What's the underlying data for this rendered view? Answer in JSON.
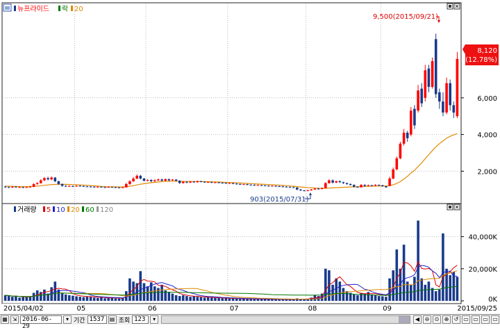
{
  "price_panel": {
    "legend": {
      "name": "뉴프라이드",
      "up_label": "락",
      "ma_value": "20"
    },
    "high_annotation": "9,500(2015/09/21)",
    "low_annotation": "903(2015/07/31)",
    "current_price": "8,120",
    "current_change": "(12.78%)"
  },
  "volume_panel": {
    "legend": {
      "name": "거래량",
      "ma": [
        "5",
        "10",
        "20",
        "60",
        "120"
      ]
    }
  },
  "x_axis": {
    "start_date": "2015/04/02",
    "end_date": "2015/09/25",
    "month_labels": [
      "05",
      "06",
      "07",
      "08",
      "09"
    ]
  },
  "toolbar": {
    "date": "2016-06-29",
    "period_label": "기간",
    "period_value": "1537",
    "query_label": "조회",
    "query_value": "123"
  },
  "colors": {
    "up": "#ff0000",
    "down": "#1a3a8a",
    "ma20": "#e08a00",
    "ma5": "#e00000",
    "ma10": "#2222cc",
    "ma20v": "#e08a00",
    "ma60": "#007700",
    "ma120": "#999999"
  },
  "chart_data": [
    {
      "type": "candlestick",
      "y_ticks": [
        "2,000",
        "4,000",
        "6,000"
      ],
      "ylim": [
        500,
        10500
      ],
      "candles": [
        [
          1160,
          1130,
          1200,
          1090
        ],
        [
          1130,
          1110,
          1170,
          1080
        ],
        [
          1110,
          1150,
          1190,
          1090
        ],
        [
          1150,
          1120,
          1180,
          1100
        ],
        [
          1120,
          1130,
          1160,
          1090
        ],
        [
          1130,
          1110,
          1160,
          1080
        ],
        [
          1110,
          1130,
          1150,
          1090
        ],
        [
          1130,
          1150,
          1190,
          1110
        ],
        [
          1150,
          1300,
          1340,
          1130
        ],
        [
          1300,
          1350,
          1400,
          1260
        ],
        [
          1350,
          1500,
          1560,
          1320
        ],
        [
          1500,
          1620,
          1680,
          1460
        ],
        [
          1620,
          1550,
          1700,
          1500
        ],
        [
          1550,
          1650,
          1720,
          1510
        ],
        [
          1650,
          1450,
          1680,
          1400
        ],
        [
          1450,
          1300,
          1480,
          1260
        ],
        [
          1300,
          1200,
          1330,
          1150
        ],
        [
          1200,
          1180,
          1240,
          1140
        ],
        [
          1180,
          1190,
          1230,
          1150
        ],
        [
          1190,
          1170,
          1220,
          1140
        ],
        [
          1170,
          1200,
          1230,
          1150
        ],
        [
          1200,
          1190,
          1240,
          1160
        ],
        [
          1190,
          1170,
          1210,
          1140
        ],
        [
          1170,
          1160,
          1200,
          1130
        ],
        [
          1160,
          1150,
          1190,
          1120
        ],
        [
          1150,
          1140,
          1180,
          1110
        ],
        [
          1140,
          1150,
          1180,
          1110
        ],
        [
          1150,
          1130,
          1170,
          1100
        ],
        [
          1130,
          1120,
          1160,
          1090
        ],
        [
          1120,
          1140,
          1170,
          1100
        ],
        [
          1140,
          1130,
          1160,
          1100
        ],
        [
          1130,
          1110,
          1150,
          1080
        ],
        [
          1110,
          1100,
          1140,
          1070
        ],
        [
          1100,
          1120,
          1150,
          1080
        ],
        [
          1120,
          1300,
          1360,
          1100
        ],
        [
          1300,
          1450,
          1500,
          1260
        ],
        [
          1450,
          1600,
          1680,
          1420
        ],
        [
          1600,
          1750,
          1820,
          1560
        ],
        [
          1750,
          1600,
          1800,
          1550
        ],
        [
          1600,
          1480,
          1630,
          1440
        ],
        [
          1480,
          1520,
          1570,
          1440
        ],
        [
          1520,
          1450,
          1560,
          1400
        ],
        [
          1450,
          1500,
          1550,
          1420
        ],
        [
          1500,
          1550,
          1600,
          1460
        ],
        [
          1550,
          1480,
          1590,
          1450
        ],
        [
          1480,
          1560,
          1610,
          1450
        ],
        [
          1560,
          1500,
          1600,
          1460
        ],
        [
          1500,
          1540,
          1580,
          1470
        ],
        [
          1540,
          1480,
          1570,
          1440
        ],
        [
          1480,
          1350,
          1500,
          1320
        ],
        [
          1350,
          1420,
          1460,
          1320
        ],
        [
          1420,
          1380,
          1450,
          1340
        ],
        [
          1380,
          1430,
          1470,
          1350
        ],
        [
          1430,
          1400,
          1460,
          1360
        ],
        [
          1400,
          1450,
          1490,
          1370
        ],
        [
          1450,
          1420,
          1480,
          1390
        ],
        [
          1420,
          1400,
          1450,
          1370
        ],
        [
          1400,
          1410,
          1440,
          1370
        ],
        [
          1410,
          1380,
          1430,
          1350
        ],
        [
          1380,
          1390,
          1420,
          1350
        ],
        [
          1390,
          1370,
          1410,
          1340
        ],
        [
          1370,
          1360,
          1400,
          1330
        ],
        [
          1360,
          1340,
          1390,
          1310
        ],
        [
          1340,
          1350,
          1380,
          1310
        ],
        [
          1350,
          1320,
          1370,
          1290
        ],
        [
          1320,
          1300,
          1350,
          1270
        ],
        [
          1300,
          1280,
          1330,
          1250
        ],
        [
          1280,
          1290,
          1320,
          1250
        ],
        [
          1290,
          1260,
          1310,
          1230
        ],
        [
          1260,
          1250,
          1290,
          1220
        ],
        [
          1250,
          1230,
          1280,
          1200
        ],
        [
          1230,
          1240,
          1270,
          1200
        ],
        [
          1240,
          1220,
          1260,
          1190
        ],
        [
          1220,
          1210,
          1250,
          1180
        ],
        [
          1210,
          1190,
          1240,
          1160
        ],
        [
          1190,
          1200,
          1230,
          1160
        ],
        [
          1200,
          1180,
          1220,
          1150
        ],
        [
          1180,
          1170,
          1210,
          1140
        ],
        [
          1170,
          1150,
          1200,
          1120
        ],
        [
          1150,
          1140,
          1180,
          1110
        ],
        [
          1140,
          1130,
          1170,
          1100
        ],
        [
          1130,
          1110,
          1160,
          1080
        ],
        [
          1110,
          1000,
          1120,
          960
        ],
        [
          1000,
          950,
          1020,
          920
        ],
        [
          950,
          930,
          980,
          903
        ],
        [
          930,
          960,
          990,
          910
        ],
        [
          960,
          1000,
          1030,
          940
        ],
        [
          1000,
          1050,
          1080,
          980
        ],
        [
          1050,
          1030,
          1090,
          1000
        ],
        [
          1030,
          1080,
          1110,
          1010
        ],
        [
          1080,
          1350,
          1400,
          1060
        ],
        [
          1350,
          1500,
          1560,
          1320
        ],
        [
          1500,
          1380,
          1550,
          1330
        ],
        [
          1380,
          1450,
          1480,
          1350
        ],
        [
          1450,
          1400,
          1500,
          1360
        ],
        [
          1400,
          1350,
          1430,
          1300
        ],
        [
          1350,
          1300,
          1380,
          1260
        ],
        [
          1300,
          1250,
          1330,
          1220
        ],
        [
          1250,
          1150,
          1280,
          1120
        ],
        [
          1150,
          1120,
          1180,
          1090
        ],
        [
          1120,
          1250,
          1300,
          1100
        ],
        [
          1250,
          1200,
          1290,
          1150
        ],
        [
          1200,
          1230,
          1270,
          1170
        ],
        [
          1230,
          1210,
          1260,
          1180
        ],
        [
          1210,
          1250,
          1290,
          1190
        ],
        [
          1250,
          1230,
          1280,
          1200
        ],
        [
          1230,
          1180,
          1260,
          1150
        ],
        [
          1180,
          1120,
          1200,
          1100
        ],
        [
          1200,
          1600,
          1700,
          1180
        ],
        [
          1600,
          2100,
          2200,
          1560
        ],
        [
          2100,
          2700,
          2800,
          2050
        ],
        [
          2700,
          3500,
          3600,
          2650
        ],
        [
          3500,
          4100,
          4300,
          3400
        ],
        [
          4100,
          3800,
          4200,
          3600
        ],
        [
          4000,
          5300,
          5500,
          3900
        ],
        [
          5400,
          4500,
          5600,
          4300
        ],
        [
          5300,
          6400,
          6700,
          5200
        ],
        [
          6500,
          5700,
          6800,
          5500
        ],
        [
          6000,
          7500,
          7800,
          5800
        ],
        [
          7600,
          6600,
          7800,
          6300
        ],
        [
          6600,
          8000,
          8200,
          6500
        ],
        [
          9200,
          6200,
          9500,
          6000
        ],
        [
          6300,
          5800,
          6500,
          5400
        ],
        [
          5800,
          5200,
          6300,
          5000
        ],
        [
          5200,
          6800,
          7100,
          5100
        ],
        [
          6800,
          5600,
          7000,
          5300
        ],
        [
          5600,
          5200,
          5800,
          4900
        ],
        [
          5000,
          8120,
          8500,
          4900
        ]
      ],
      "ma20": [
        1180,
        1180,
        1170,
        1165,
        1160,
        1160,
        1160,
        1165,
        1175,
        1190,
        1210,
        1230,
        1250,
        1270,
        1280,
        1285,
        1285,
        1280,
        1275,
        1270,
        1260,
        1250,
        1240,
        1230,
        1215,
        1200,
        1185,
        1170,
        1160,
        1150,
        1150,
        1145,
        1140,
        1145,
        1160,
        1180,
        1210,
        1250,
        1290,
        1320,
        1350,
        1370,
        1390,
        1410,
        1430,
        1440,
        1450,
        1455,
        1455,
        1450,
        1445,
        1440,
        1440,
        1440,
        1440,
        1435,
        1430,
        1425,
        1420,
        1415,
        1410,
        1400,
        1390,
        1385,
        1375,
        1365,
        1355,
        1345,
        1335,
        1325,
        1310,
        1300,
        1290,
        1280,
        1270,
        1260,
        1250,
        1240,
        1225,
        1210,
        1195,
        1180,
        1160,
        1140,
        1120,
        1100,
        1090,
        1080,
        1070,
        1065,
        1070,
        1080,
        1090,
        1100,
        1110,
        1120,
        1130,
        1140,
        1145,
        1150,
        1160,
        1170,
        1175,
        1180,
        1185,
        1190,
        1195,
        1195,
        1215,
        1260,
        1330,
        1430,
        1570,
        1720,
        1900,
        2050,
        2250,
        2450,
        2680,
        2900,
        3120,
        3330,
        3500,
        3650,
        3800,
        3900,
        3980,
        4050
      ],
      "annotations": [
        "9,500(2015/09/21)",
        "903(2015/07/31)"
      ]
    },
    {
      "type": "bar",
      "y_ticks": [
        "40,000K",
        "20,000K",
        "0K"
      ],
      "ylim": [
        0,
        55000
      ],
      "values": [
        3500,
        3000,
        2500,
        2800,
        2000,
        2500,
        2200,
        2800,
        5000,
        6500,
        5500,
        7000,
        4500,
        8500,
        12000,
        7000,
        5000,
        4000,
        3500,
        3200,
        2800,
        2500,
        2300,
        2800,
        2500,
        2000,
        1800,
        2200,
        1600,
        1800,
        1900,
        1500,
        1400,
        1800,
        6000,
        14000,
        12000,
        11000,
        18500,
        11000,
        9000,
        11500,
        9000,
        8000,
        10000,
        6500,
        5500,
        4500,
        3500,
        3000,
        3500,
        3000,
        2500,
        2800,
        2500,
        2300,
        2000,
        2200,
        2000,
        1800,
        1700,
        1600,
        1500,
        1400,
        1500,
        1300,
        1200,
        1300,
        1100,
        1200,
        1100,
        1000,
        1100,
        1000,
        900,
        1000,
        900,
        800,
        900,
        800,
        700,
        800,
        1500,
        1300,
        1100,
        1200,
        2000,
        3500,
        3000,
        4500,
        20000,
        19000,
        10000,
        14000,
        12000,
        8000,
        6000,
        5000,
        4000,
        3500,
        5000,
        4500,
        5500,
        4000,
        3500,
        3000,
        2800,
        2500,
        14000,
        19000,
        32000,
        20000,
        35000,
        12000,
        10000,
        15000,
        50000,
        14000,
        10000,
        12000,
        8000,
        6000,
        7000,
        42000,
        20000,
        16000,
        18000,
        15000
      ],
      "ma5": [],
      "ma10": [],
      "ma20": [],
      "ma60": []
    }
  ]
}
